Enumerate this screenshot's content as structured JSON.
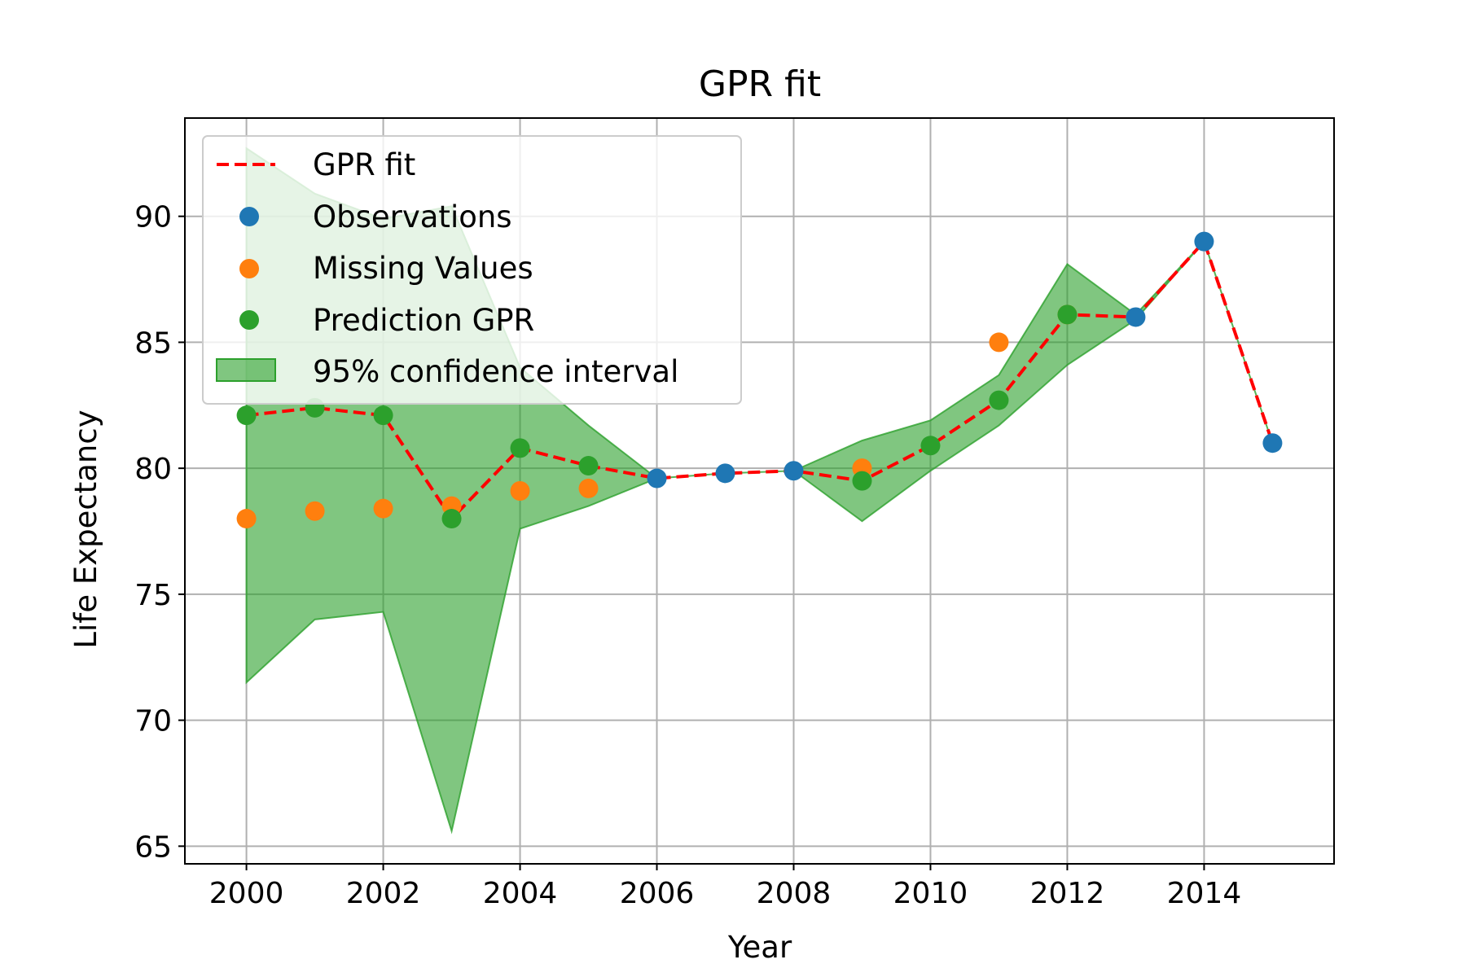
{
  "chart_data": {
    "type": "line",
    "title": "GPR fit",
    "xlabel": "Year",
    "ylabel": "Life Expectancy",
    "xlim": [
      1999.1,
      2015.9
    ],
    "ylim": [
      64.3,
      93.9
    ],
    "xticks": [
      2000,
      2002,
      2004,
      2006,
      2008,
      2010,
      2012,
      2014
    ],
    "yticks": [
      65,
      70,
      75,
      80,
      85,
      90
    ],
    "grid": true,
    "legend_position": "top-left",
    "colors": {
      "gpr_fit": "#ff0000",
      "observations": "#1f77b4",
      "missing": "#ff7f0e",
      "prediction": "#2ca02c",
      "ci_fill": "#2ca02c"
    },
    "legend": [
      {
        "label": "GPR fit",
        "kind": "dashed-line"
      },
      {
        "label": "Observations",
        "kind": "marker"
      },
      {
        "label": "Missing Values",
        "kind": "marker"
      },
      {
        "label": "Prediction GPR",
        "kind": "marker"
      },
      {
        "label": "95% confidence interval",
        "kind": "patch"
      }
    ],
    "gpr_fit": {
      "name": "GPR fit",
      "x": [
        2000,
        2001,
        2002,
        2003,
        2004,
        2005,
        2006,
        2007,
        2008,
        2009,
        2010,
        2011,
        2012,
        2013,
        2014,
        2015
      ],
      "y": [
        82.1,
        82.4,
        82.1,
        78.0,
        80.8,
        80.1,
        79.6,
        79.8,
        79.9,
        79.5,
        80.9,
        82.7,
        86.1,
        86.0,
        89.0,
        81.0
      ]
    },
    "confidence_interval": {
      "name": "95% confidence interval",
      "x": [
        2000,
        2001,
        2002,
        2003,
        2004,
        2005,
        2006,
        2007,
        2008,
        2009,
        2010,
        2011,
        2012,
        2013,
        2014,
        2015
      ],
      "lower": [
        71.5,
        74.0,
        74.3,
        65.6,
        77.6,
        78.5,
        79.6,
        79.8,
        79.9,
        77.9,
        79.9,
        81.7,
        84.1,
        85.9,
        89.0,
        81.0
      ],
      "upper": [
        92.7,
        90.9,
        89.9,
        90.4,
        84.0,
        81.7,
        79.6,
        79.8,
        79.9,
        81.1,
        81.9,
        83.7,
        88.1,
        86.1,
        89.0,
        81.0
      ]
    },
    "observations": {
      "name": "Observations",
      "x": [
        2006,
        2007,
        2008,
        2013,
        2014,
        2015
      ],
      "y": [
        79.6,
        79.8,
        79.9,
        86.0,
        89.0,
        81.0
      ]
    },
    "missing_values": {
      "name": "Missing Values",
      "x": [
        2000,
        2001,
        2002,
        2003,
        2004,
        2005,
        2009,
        2011,
        2012
      ],
      "y": [
        78.0,
        78.3,
        78.4,
        78.5,
        79.1,
        79.2,
        80.0,
        85.0,
        86.1
      ]
    },
    "prediction_gpr": {
      "name": "Prediction GPR",
      "x": [
        2000,
        2001,
        2002,
        2003,
        2004,
        2005,
        2009,
        2010,
        2011,
        2012
      ],
      "y": [
        82.1,
        82.4,
        82.1,
        78.0,
        80.8,
        80.1,
        79.5,
        80.9,
        82.7,
        86.1
      ]
    }
  }
}
